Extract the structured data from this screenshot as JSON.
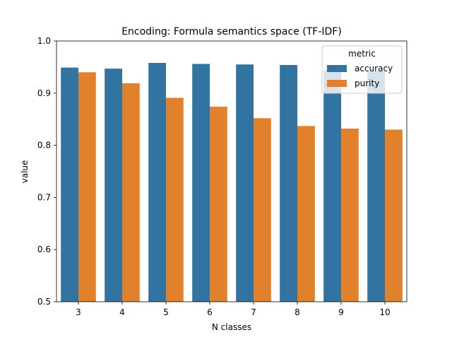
{
  "chart_data": {
    "type": "bar",
    "title": "Encoding: Formula semantics space (TF-IDF)",
    "xlabel": "N classes",
    "ylabel": "value",
    "categories": [
      "3",
      "4",
      "5",
      "6",
      "7",
      "8",
      "9",
      "10"
    ],
    "series": [
      {
        "name": "accuracy",
        "color": "#3274a1",
        "values": [
          0.949,
          0.947,
          0.958,
          0.956,
          0.955,
          0.954,
          0.944,
          0.942
        ]
      },
      {
        "name": "purity",
        "color": "#e1812c",
        "values": [
          0.94,
          0.919,
          0.891,
          0.874,
          0.852,
          0.837,
          0.832,
          0.83
        ]
      }
    ],
    "ylim": [
      0.5,
      1.0
    ],
    "yticks": [
      "0.5",
      "0.6",
      "0.7",
      "0.8",
      "0.9",
      "1.0"
    ],
    "legend": {
      "title": "metric",
      "placement": "top-right"
    },
    "grid": false
  }
}
